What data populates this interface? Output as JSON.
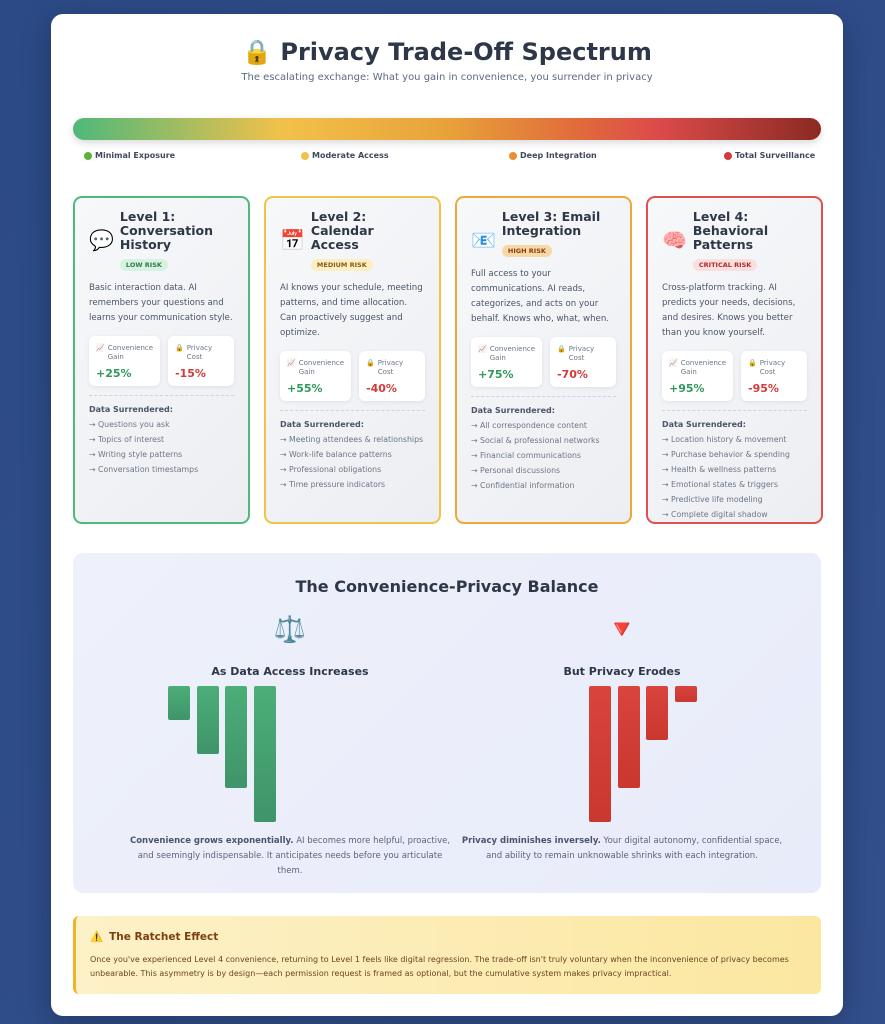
{
  "header": {
    "icon": "🔒",
    "title": "Privacy Trade-Off Spectrum",
    "subtitle": "The escalating exchange: What you gain in convenience, you surrender in privacy"
  },
  "spectrum": {
    "colors": [
      "#4fb87a",
      "#f2c14a",
      "#e8a23a",
      "#dc4b4b",
      "#8b2a22"
    ],
    "legend": [
      {
        "label": "Minimal Exposure",
        "color": "#5bb33c"
      },
      {
        "label": "Moderate Access",
        "color": "#f2c14a"
      },
      {
        "label": "Deep Integration",
        "color": "#e8922f"
      },
      {
        "label": "Total Surveillance",
        "color": "#d33a3a"
      }
    ]
  },
  "cards": [
    {
      "icon": "💬",
      "title": "Level 1: Conversation History",
      "risk": "LOW RISK",
      "color": "#4fb87a",
      "desc": "Basic interaction data. AI remembers your questions and learns your communication style.",
      "gain_label": "Convenience Gain",
      "gain": "+25%",
      "cost_label": "Privacy Cost",
      "cost": "-15%",
      "data_title": "Data Surrendered:",
      "items": [
        "Questions you ask",
        "Topics of interest",
        "Writing style patterns",
        "Conversation timestamps"
      ]
    },
    {
      "icon": "📅",
      "title": "Level 2: Calendar Access",
      "risk": "MEDIUM RISK",
      "color": "#f2c14a",
      "desc": "AI knows your schedule, meeting patterns, and time allocation. Can proactively suggest and optimize.",
      "gain_label": "Convenience Gain",
      "gain": "+55%",
      "cost_label": "Privacy Cost",
      "cost": "-40%",
      "data_title": "Data Surrendered:",
      "items": [
        "Meeting attendees & relationships",
        "Work-life balance patterns",
        "Professional obligations",
        "Time pressure indicators"
      ]
    },
    {
      "icon": "📧",
      "title": "Level 3: Email Integration",
      "risk": "HIGH RISK",
      "color": "#eea83a",
      "desc": "Full access to your communications. AI reads, categorizes, and acts on your behalf. Knows who, what, when.",
      "gain_label": "Convenience Gain",
      "gain": "+75%",
      "cost_label": "Privacy Cost",
      "cost": "-70%",
      "data_title": "Data Surrendered:",
      "items": [
        "All correspondence content",
        "Social & professional networks",
        "Financial communications",
        "Personal discussions",
        "Confidential information"
      ]
    },
    {
      "icon": "🧠",
      "title": "Level 4: Behavioral Patterns",
      "risk": "CRITICAL RISK",
      "color": "#e05050",
      "desc": "Cross-platform tracking. AI predicts your needs, decisions, and desires. Knows you better than you know yourself.",
      "gain_label": "Convenience Gain",
      "gain": "+95%",
      "cost_label": "Privacy Cost",
      "cost": "-95%",
      "data_title": "Data Surrendered:",
      "items": [
        "Location history & movement",
        "Purchase behavior & spending",
        "Health & wellness patterns",
        "Emotional states & triggers",
        "Predictive life modeling",
        "Complete digital shadow"
      ]
    }
  ],
  "balance": {
    "title": "The Convenience-Privacy Balance",
    "left": {
      "icon": "⚖️",
      "title": "As Data Access Increases",
      "bars": [
        25,
        50,
        75,
        100
      ],
      "color": "#4cae78",
      "bold": "Convenience grows exponentially.",
      "text": " AI becomes more helpful, proactive, and seemingly indispensable. It anticipates needs before you articulate them."
    },
    "right": {
      "icon": "🔻",
      "title": "But Privacy Erodes",
      "bars": [
        100,
        75,
        40,
        12
      ],
      "color": "#d9443d",
      "bold": "Privacy diminishes inversely.",
      "text": " Your digital autonomy, confidential space, and ability to remain unknowable shrinks with each integration."
    }
  },
  "ratchet": {
    "icon": "⚠️",
    "title": "The Ratchet Effect",
    "text": "Once you've experienced Level 4 convenience, returning to Level 1 feels like digital regression. The trade-off isn't truly voluntary when the inconvenience of privacy becomes unbearable. This asymmetry is by design—each permission request is framed as optional, but the cumulative system makes privacy impractical."
  }
}
